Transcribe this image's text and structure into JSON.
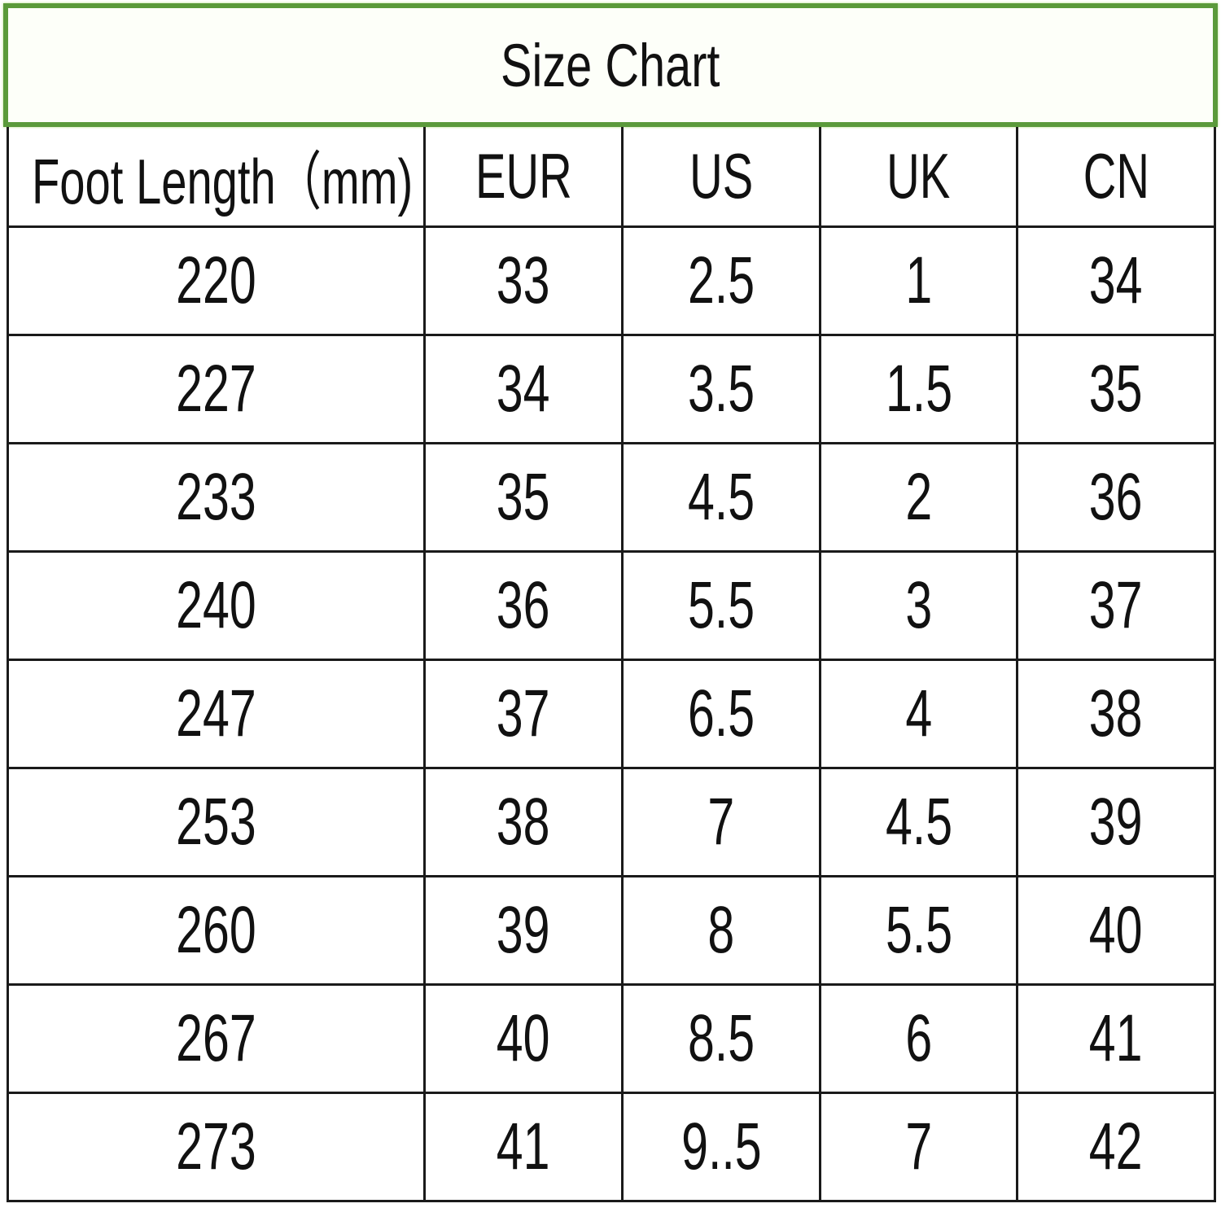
{
  "title": "Size Chart",
  "colors": {
    "title_border": "#5b9a3b",
    "grid": "#1a1a1a"
  },
  "columns": [
    "Foot Length（mm)",
    "EUR",
    "US",
    "UK",
    "CN"
  ],
  "rows": [
    [
      "220",
      "33",
      "2.5",
      "1",
      "34"
    ],
    [
      "227",
      "34",
      "3.5",
      "1.5",
      "35"
    ],
    [
      "233",
      "35",
      "4.5",
      "2",
      "36"
    ],
    [
      "240",
      "36",
      "5.5",
      "3",
      "37"
    ],
    [
      "247",
      "37",
      "6.5",
      "4",
      "38"
    ],
    [
      "253",
      "38",
      "7",
      "4.5",
      "39"
    ],
    [
      "260",
      "39",
      "8",
      "5.5",
      "40"
    ],
    [
      "267",
      "40",
      "8.5",
      "6",
      "41"
    ],
    [
      "273",
      "41",
      "9..5",
      "7",
      "42"
    ]
  ]
}
